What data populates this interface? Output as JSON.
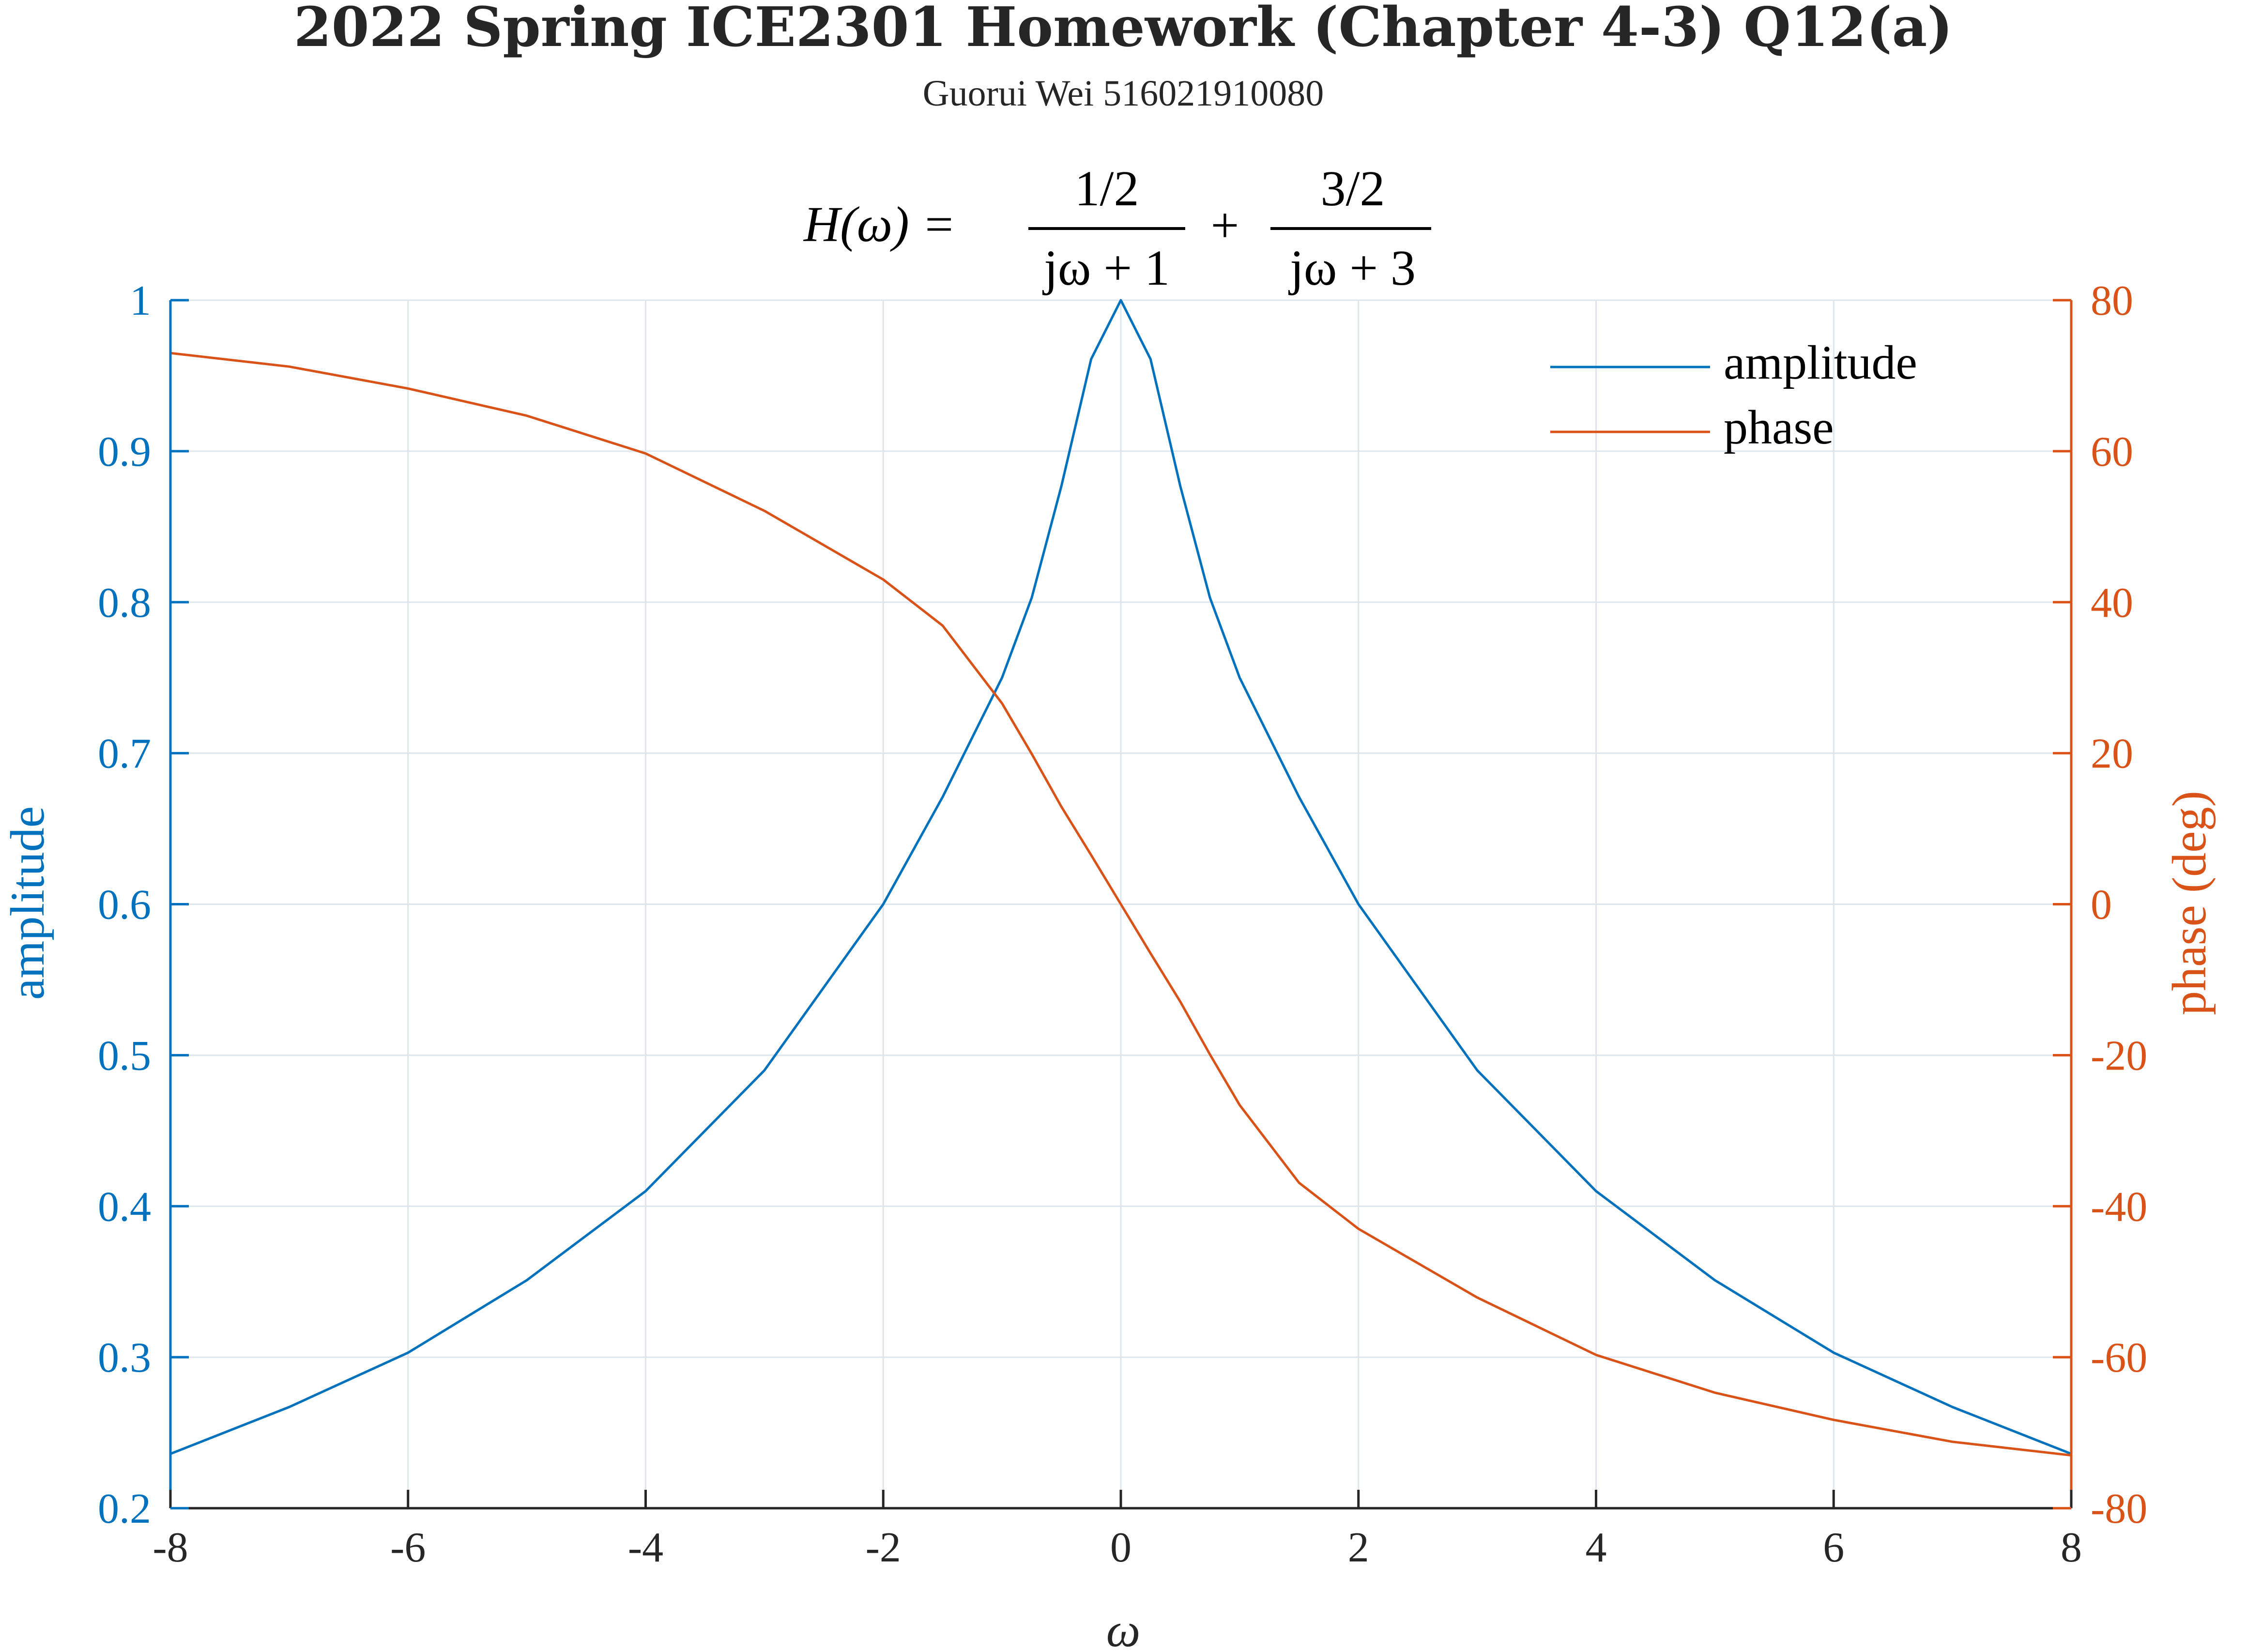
{
  "figure": {
    "title": "2022 Spring ICE2301 Homework (Chapter 4-3) Q12(a)",
    "subtitle": "Guorui Wei 516021910080"
  },
  "chart_data": {
    "type": "line",
    "formula": {
      "lhs": "H(ω) =",
      "term1": {
        "num": "1/2",
        "den": "jω + 1"
      },
      "plus": "+",
      "term2": {
        "num": "3/2",
        "den": "jω + 3"
      }
    },
    "xlabel": "ω",
    "ylabel_left": "amplitude",
    "ylabel_right": "phase (deg)",
    "xlim": [
      -8,
      8
    ],
    "ylim_left": [
      0.2,
      1
    ],
    "ylim_right": [
      -80,
      80
    ],
    "xticks": [
      -8,
      -6,
      -4,
      -2,
      0,
      2,
      4,
      6,
      8
    ],
    "xtick_labels": [
      "-8",
      "-6",
      "-4",
      "-2",
      "0",
      "2",
      "4",
      "6",
      "8"
    ],
    "yticks_left": [
      0.2,
      0.3,
      0.4,
      0.5,
      0.6,
      0.7,
      0.8,
      0.9,
      1
    ],
    "ytick_labels_left": [
      "0.2",
      "0.3",
      "0.4",
      "0.5",
      "0.6",
      "0.7",
      "0.8",
      "0.9",
      "1"
    ],
    "yticks_right": [
      -80,
      -60,
      -40,
      -20,
      0,
      20,
      40,
      60,
      80
    ],
    "ytick_labels_right": [
      "-80",
      "-60",
      "-40",
      "-20",
      "0",
      "20",
      "40",
      "60",
      "80"
    ],
    "grid": true,
    "legend_position": "top-right",
    "colors": {
      "amplitude": "#0072BD",
      "phase": "#D95319",
      "axis": "#262626"
    },
    "series": [
      {
        "name": "amplitude",
        "axis": "left",
        "x": [
          -8,
          -7,
          -6,
          -5,
          -4,
          -3,
          -2,
          -1.5,
          -1,
          -0.75,
          -0.5,
          -0.25,
          0,
          0.25,
          0.5,
          0.75,
          1,
          1.5,
          2,
          3,
          4,
          5,
          6,
          7,
          8
        ],
        "values": [
          0.236,
          0.267,
          0.303,
          0.351,
          0.41,
          0.49,
          0.6,
          0.671,
          0.75,
          0.803,
          0.877,
          0.961,
          1.0,
          0.961,
          0.877,
          0.803,
          0.75,
          0.671,
          0.6,
          0.49,
          0.41,
          0.351,
          0.303,
          0.267,
          0.236
        ]
      },
      {
        "name": "phase",
        "axis": "right",
        "x": [
          -8,
          -7,
          -6,
          -5,
          -4,
          -3,
          -2,
          -1.5,
          -1,
          -0.75,
          -0.5,
          -0.25,
          0,
          0.25,
          0.5,
          0.75,
          1,
          1.5,
          2,
          3,
          4,
          5,
          6,
          7,
          8
        ],
        "values": [
          73.0,
          71.2,
          68.3,
          64.7,
          59.7,
          52.1,
          43.0,
          36.9,
          26.6,
          19.9,
          12.9,
          6.5,
          0,
          -6.5,
          -12.9,
          -19.9,
          -26.6,
          -36.9,
          -43.0,
          -52.1,
          -59.7,
          -64.7,
          -68.3,
          -71.2,
          -73.0
        ]
      }
    ]
  }
}
